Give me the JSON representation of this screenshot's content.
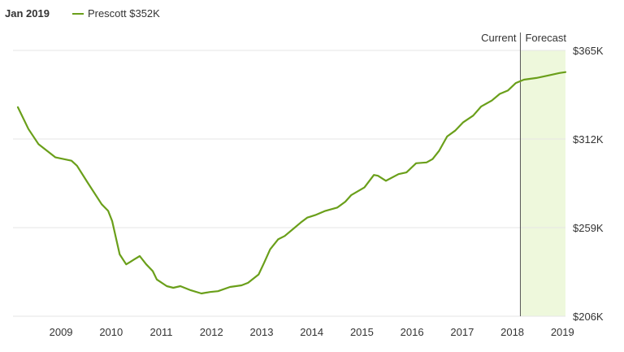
{
  "legend": {
    "date": "Jan 2019",
    "series_label": "Prescott $352K"
  },
  "colors": {
    "line": "#6a9f1a",
    "forecast_fill": "#eef8dc",
    "grid": "#e6e6e6",
    "divider": "#555555"
  },
  "chart_data": {
    "type": "line",
    "title": "",
    "xlabel": "",
    "ylabel": "",
    "xlim": [
      2008.14,
      2019.06
    ],
    "ylim": [
      206,
      365
    ],
    "y_ticks": [
      365,
      312,
      259,
      206
    ],
    "y_tick_labels": [
      "$365K",
      "$312K",
      "$259K",
      "$206K"
    ],
    "x_ticks": [
      2009,
      2010,
      2011,
      2012,
      2013,
      2014,
      2015,
      2016,
      2017,
      2018,
      2019
    ],
    "x_tick_labels": [
      "2009",
      "2010",
      "2011",
      "2012",
      "2013",
      "2014",
      "2015",
      "2016",
      "2017",
      "2018",
      "2019"
    ],
    "grid": true,
    "legend_position": "top-left",
    "current_x": 2018.16,
    "annotations": {
      "current": "Current",
      "forecast": "Forecast"
    },
    "series": [
      {
        "name": "Prescott",
        "x": [
          2008.14,
          2008.35,
          2008.55,
          2008.89,
          2009.21,
          2009.32,
          2009.53,
          2009.81,
          2009.94,
          2010.02,
          2010.17,
          2010.3,
          2010.38,
          2010.46,
          2010.57,
          2010.7,
          2010.83,
          2010.91,
          2011.11,
          2011.24,
          2011.38,
          2011.59,
          2011.8,
          2011.97,
          2012.13,
          2012.37,
          2012.6,
          2012.73,
          2012.94,
          2013.05,
          2013.17,
          2013.33,
          2013.46,
          2013.62,
          2013.78,
          2013.91,
          2014.07,
          2014.27,
          2014.51,
          2014.67,
          2014.79,
          2015.05,
          2015.24,
          2015.32,
          2015.48,
          2015.73,
          2015.89,
          2016.08,
          2016.29,
          2016.41,
          2016.54,
          2016.7,
          2016.86,
          2017.02,
          2017.22,
          2017.38,
          2017.59,
          2017.75,
          2017.91,
          2018.07,
          2018.23,
          2018.48,
          2018.72,
          2018.94,
          2019.06
        ],
        "values": [
          331,
          318,
          309,
          301,
          299,
          296,
          286,
          273,
          269,
          263,
          243,
          237,
          238.5,
          240,
          242,
          237,
          233,
          228,
          224,
          223,
          224,
          221.5,
          219.6,
          220.5,
          221,
          223.5,
          224.5,
          226,
          231,
          238,
          246,
          252,
          254,
          258,
          262,
          265,
          266.5,
          269,
          271,
          274.5,
          278.5,
          283,
          290.5,
          290,
          287,
          291,
          292,
          297.5,
          298,
          300,
          305,
          313.5,
          317,
          322,
          326,
          331.5,
          335,
          339,
          341,
          345.5,
          347.5,
          348.5,
          350,
          351.5,
          352
        ]
      }
    ]
  }
}
